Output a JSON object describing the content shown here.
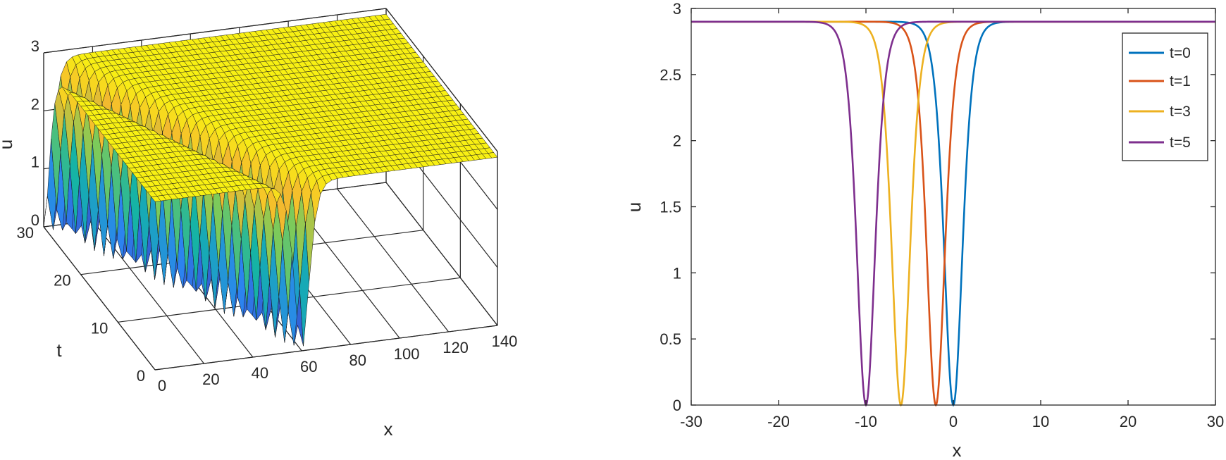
{
  "chart_data": [
    {
      "type": "surface",
      "title": "",
      "xlabel": "x",
      "ylabel": "t",
      "zlabel": "u",
      "x_ticks": [
        "0",
        "20",
        "40",
        "60",
        "80",
        "100",
        "120",
        "140"
      ],
      "t_ticks": [
        "0",
        "10",
        "20",
        "30"
      ],
      "u_ticks": [
        "0",
        "1",
        "2",
        "3"
      ],
      "xlim": [
        0,
        140
      ],
      "tlim": [
        0,
        30
      ],
      "zlim": [
        0,
        3
      ],
      "grid": true,
      "colormap": [
        "#3e26a8",
        "#2c85f0",
        "#12b2a8",
        "#80cb58",
        "#f5ba2e",
        "#f9fb0e"
      ],
      "surface": {
        "description": "dark soliton u(x,t) = 2.9 - depth * sech^2 shape moving along x",
        "background_level": 2.9,
        "min_level": 0,
        "dip_center_x_at_t0": 60,
        "dip_center_x_at_t30": 0,
        "dip_width": 4,
        "x_samples": 61,
        "t_samples": 31
      }
    },
    {
      "type": "line",
      "title": "",
      "xlabel": "x",
      "ylabel": "u",
      "xlim": [
        -30,
        30
      ],
      "ylim": [
        0,
        3
      ],
      "x_ticks": [
        "-30",
        "-20",
        "-10",
        "0",
        "10",
        "20",
        "30"
      ],
      "y_ticks": [
        "0",
        "0.5",
        "1",
        "1.5",
        "2",
        "2.5",
        "3"
      ],
      "grid": false,
      "legend_position": "top-right",
      "series": [
        {
          "name": "t=0",
          "color": "#0072bd",
          "background": 2.9,
          "dip_min": 0,
          "dip_center": 0,
          "width": 1.4
        },
        {
          "name": "t=1",
          "color": "#d95319",
          "background": 2.9,
          "dip_min": 0,
          "dip_center": -2,
          "width": 1.4
        },
        {
          "name": "t=3",
          "color": "#edb120",
          "background": 2.9,
          "dip_min": 0,
          "dip_center": -6,
          "width": 1.4
        },
        {
          "name": "t=5",
          "color": "#7e2f8e",
          "background": 2.9,
          "dip_min": 0,
          "dip_center": -10,
          "width": 1.4
        }
      ]
    }
  ]
}
